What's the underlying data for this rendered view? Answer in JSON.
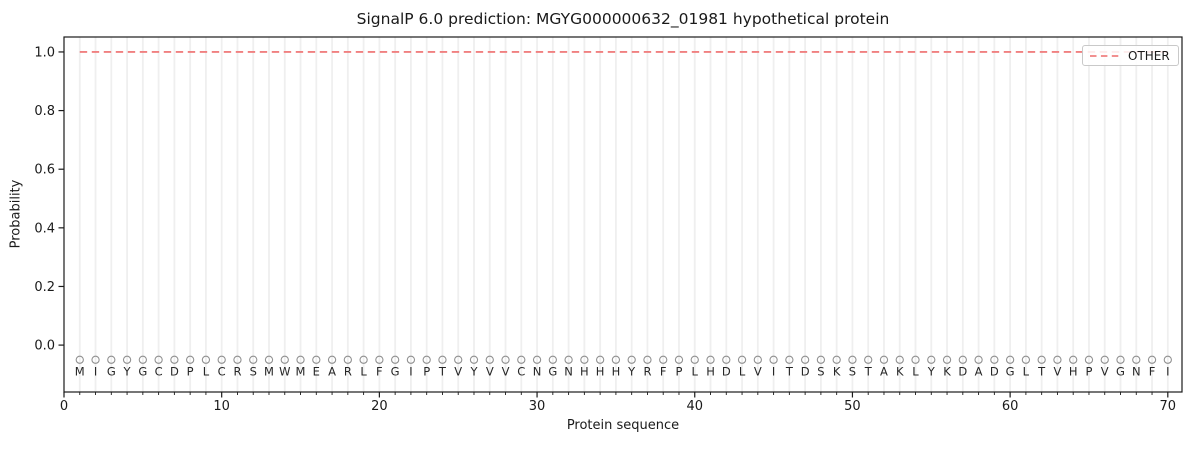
{
  "title": "SignalP 6.0 prediction: MGYG000000632_01981 hypothetical protein",
  "axes": {
    "xlabel": "Protein sequence",
    "ylabel": "Probability",
    "xticks": [
      0,
      10,
      20,
      30,
      40,
      50,
      60,
      70
    ],
    "yticks": [
      0.0,
      0.2,
      0.4,
      0.6,
      0.8,
      1.0
    ]
  },
  "legend": {
    "position": "upper right",
    "items": [
      {
        "label": "OTHER",
        "color": "#f08080",
        "style": "dashed"
      }
    ]
  },
  "colors": {
    "accent_line": "#f08080",
    "grid": "#efefef",
    "marker": "#919191",
    "text": "#1a1a1a",
    "spine": "#1a1a1a"
  },
  "chart_data": {
    "type": "line",
    "title": "SignalP 6.0 prediction: MGYG000000632_01981 hypothetical protein",
    "xlabel": "Protein sequence",
    "ylabel": "Probability",
    "xlim": [
      0,
      70.9
    ],
    "ylim": [
      -0.16,
      1.051
    ],
    "xticks": [
      0,
      10,
      20,
      30,
      40,
      50,
      60,
      70
    ],
    "yticks": [
      0.0,
      0.2,
      0.4,
      0.6,
      0.8,
      1.0
    ],
    "grid": "vertical gridline at every residue position, no horizontal gridlines",
    "legend_position": "upper right",
    "series": [
      {
        "name": "OTHER",
        "style": "dashed",
        "color": "#f08080",
        "x_start": 1,
        "x_end": 70,
        "constant_y": 1.0,
        "note": "flat dashed line, probability 1.0 for all 70 residues"
      }
    ],
    "sequence": [
      "M",
      "I",
      "G",
      "Y",
      "G",
      "C",
      "D",
      "P",
      "L",
      "C",
      "R",
      "S",
      "M",
      "W",
      "M",
      "E",
      "A",
      "R",
      "L",
      "F",
      "G",
      "I",
      "P",
      "T",
      "V",
      "Y",
      "V",
      "V",
      "C",
      "N",
      "G",
      "N",
      "H",
      "H",
      "H",
      "Y",
      "R",
      "F",
      "P",
      "L",
      "H",
      "D",
      "L",
      "V",
      "I",
      "T",
      "D",
      "S",
      "K",
      "S",
      "T",
      "A",
      "K",
      "L",
      "Y",
      "K",
      "D",
      "A",
      "D",
      "G",
      "L",
      "T",
      "V",
      "H",
      "P",
      "V",
      "G",
      "N",
      "F",
      "I"
    ],
    "sequence_markers": {
      "shape": "circle-outline",
      "y": -0.05,
      "color": "#919191"
    },
    "sequence_letters_y": -0.09
  }
}
